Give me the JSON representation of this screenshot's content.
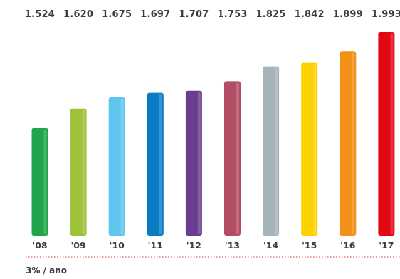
{
  "chart_data": {
    "type": "bar",
    "categories": [
      "'08",
      "'09",
      "'10",
      "'11",
      "'12",
      "'13",
      "'14",
      "'15",
      "'16",
      "'17"
    ],
    "values": [
      1524,
      1620,
      1675,
      1697,
      1707,
      1753,
      1825,
      1842,
      1899,
      1993
    ],
    "value_labels": [
      "1.524",
      "1.620",
      "1.675",
      "1.697",
      "1.707",
      "1.753",
      "1.825",
      "1.842",
      "1.899",
      "1.993"
    ],
    "colors": [
      "#1fa64a",
      "#9dc23a",
      "#5ec6ee",
      "#0a7cc4",
      "#6b3d90",
      "#b24d64",
      "#a5b4b8",
      "#fdd100",
      "#f39018",
      "#e30613"
    ],
    "ylim": [
      1000,
      2000
    ],
    "grid": false,
    "baseline": "dotted",
    "baseline_color": "#e5322d",
    "note": "3% / ano"
  }
}
